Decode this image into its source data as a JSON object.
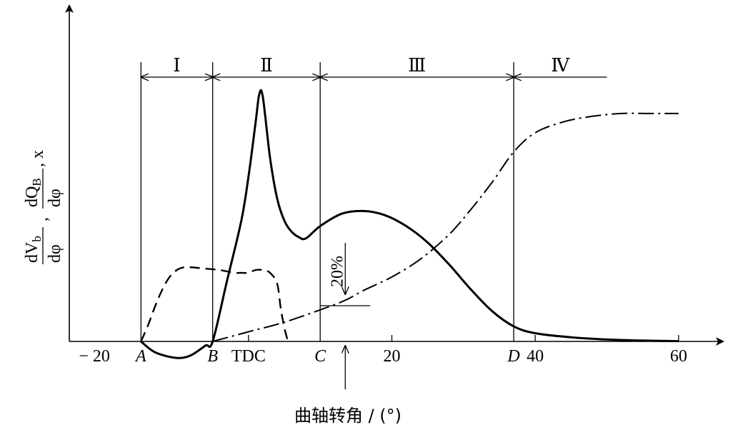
{
  "chart_data": {
    "type": "line",
    "title": "",
    "xlabel": "曲轴转角 / (°)",
    "ylabel": {
      "num1": "dV",
      "num1_sub": "b",
      "den1": "dφ",
      "num2": "dQ",
      "num2_sub": "B",
      "den2": "dφ",
      "sep": ",",
      "tail": ", x"
    },
    "xlim": [
      -25,
      65
    ],
    "ylim": [
      -0.12,
      1.0
    ],
    "grid": false,
    "legend": "none",
    "x_ticks": [
      {
        "value": -20,
        "label": "− 20",
        "italic": false
      },
      {
        "value": -15,
        "label": "A",
        "italic": true
      },
      {
        "value": -5,
        "label": "B",
        "italic": true
      },
      {
        "value": 0,
        "label": "TDC",
        "italic": false
      },
      {
        "value": 10,
        "label": "C",
        "italic": true
      },
      {
        "value": 20,
        "label": "20",
        "italic": false
      },
      {
        "value": 37,
        "label": "D",
        "italic": true
      },
      {
        "value": 40,
        "label": "40",
        "italic": false
      },
      {
        "value": 60,
        "label": "60",
        "italic": false
      }
    ],
    "phase_boundaries": [
      -15,
      -5,
      10,
      37
    ],
    "phases": [
      {
        "label": "Ⅰ",
        "from": -15,
        "to": -5
      },
      {
        "label": "Ⅱ",
        "from": -5,
        "to": 10
      },
      {
        "label": "Ⅲ",
        "from": 10,
        "to": 37
      },
      {
        "label": "Ⅳ",
        "from": 37,
        "to": 50
      }
    ],
    "annotation": {
      "text": "20%",
      "x": 13.5,
      "y": 0.13
    },
    "series": [
      {
        "style": "solid",
        "x": [
          -15,
          -13,
          -10,
          -8,
          -6,
          -5,
          -3,
          -1,
          0,
          1,
          1.5,
          2,
          3,
          4,
          5,
          6,
          7,
          8,
          10,
          13,
          16,
          19,
          22,
          25,
          28,
          31,
          34,
          37,
          40,
          45,
          50,
          55,
          60
        ],
        "y": [
          0,
          -0.04,
          -0.06,
          -0.05,
          -0.015,
          0,
          0.22,
          0.44,
          0.6,
          0.8,
          0.9,
          0.89,
          0.67,
          0.52,
          0.44,
          0.4,
          0.38,
          0.375,
          0.42,
          0.465,
          0.475,
          0.46,
          0.42,
          0.36,
          0.28,
          0.19,
          0.11,
          0.055,
          0.03,
          0.015,
          0.007,
          0.003,
          0.001
        ]
      },
      {
        "style": "dashed",
        "x": [
          -15,
          -14,
          -13,
          -12,
          -11,
          -10,
          -9,
          -8,
          -6,
          -4,
          -2,
          -1,
          0,
          1,
          2,
          3,
          4,
          4.5,
          5,
          5.5
        ],
        "y": [
          0,
          0.06,
          0.13,
          0.19,
          0.235,
          0.26,
          0.27,
          0.27,
          0.265,
          0.26,
          0.25,
          0.25,
          0.25,
          0.26,
          0.26,
          0.25,
          0.21,
          0.12,
          0.05,
          0
        ]
      },
      {
        "style": "dashdot",
        "x": [
          -5,
          0,
          5,
          10,
          13.5,
          16,
          20,
          24,
          28,
          31,
          34,
          37,
          40,
          44,
          48,
          52,
          56,
          60
        ],
        "y": [
          0,
          0.035,
          0.07,
          0.115,
          0.15,
          0.185,
          0.235,
          0.3,
          0.39,
          0.48,
          0.58,
          0.69,
          0.76,
          0.8,
          0.82,
          0.83,
          0.83,
          0.83
        ]
      }
    ]
  }
}
